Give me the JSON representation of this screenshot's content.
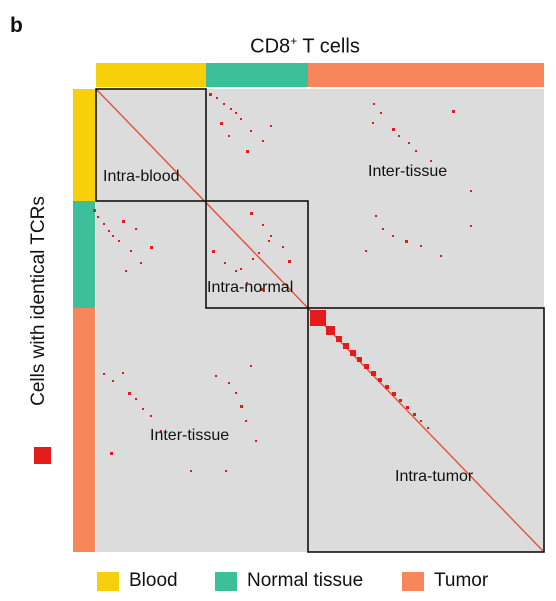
{
  "panel_letter": "b",
  "top_title_main": "CD8",
  "top_title_sup": "+",
  "top_title_rest": " T cells",
  "y_title": "Cells with identical TCRs",
  "colors": {
    "blood": "#f7cf0b",
    "normal": "#3dbf9a",
    "tumor": "#f7875a",
    "matrix_bg": "#dcdcdc",
    "marker": "#e51b1b"
  },
  "regions": {
    "intra_blood": "Intra-blood",
    "intra_normal": "Intra-normal",
    "intra_tumor": "Intra-tumor",
    "inter_tissue_top": "Inter-tissue",
    "inter_tissue_bottom": "Inter-tissue"
  },
  "legend": [
    {
      "label": "Blood",
      "color": "#f7cf0b"
    },
    {
      "label": "Normal tissue",
      "color": "#3dbf9a"
    },
    {
      "label": "Tumor",
      "color": "#f7875a"
    }
  ]
}
